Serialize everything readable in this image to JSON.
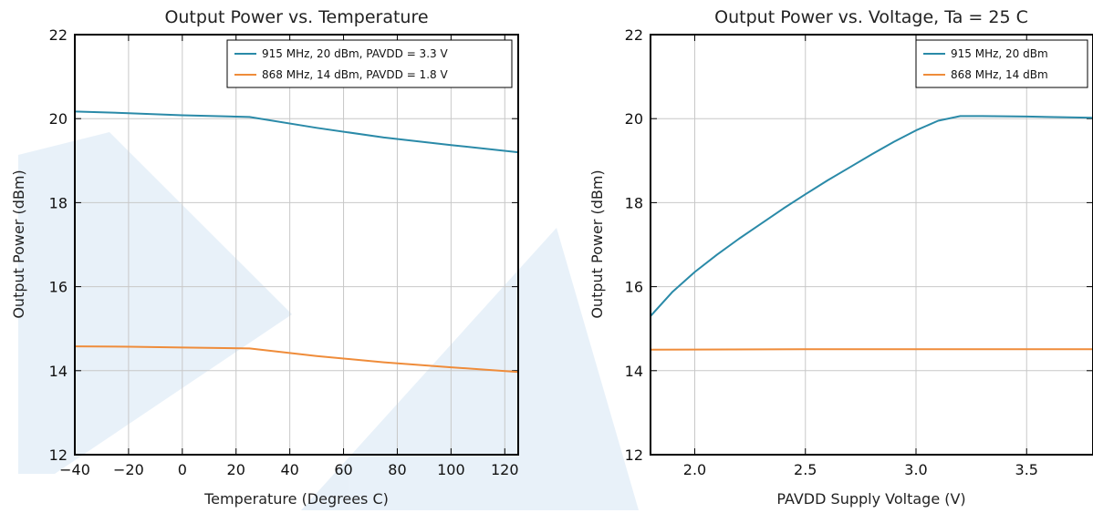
{
  "chart_data": [
    {
      "type": "line",
      "title": "Output Power vs. Temperature",
      "xlabel": "Temperature (Degrees C)",
      "ylabel": "Output Power (dBm)",
      "xlim": [
        -40,
        125
      ],
      "ylim": [
        12,
        22
      ],
      "xticks": [
        -40,
        -20,
        0,
        20,
        40,
        60,
        80,
        100,
        120
      ],
      "yticks": [
        12,
        14,
        16,
        18,
        20,
        22
      ],
      "grid": true,
      "legend": "top-right",
      "series": [
        {
          "name": "915 MHz, 20 dBm, PAVDD = 3.3 V",
          "color": "#2a8aa8",
          "x": [
            -40,
            -20,
            0,
            25,
            50,
            75,
            100,
            125
          ],
          "y": [
            20.17,
            20.13,
            20.08,
            20.04,
            19.78,
            19.55,
            19.37,
            19.2
          ]
        },
        {
          "name": "868 MHz, 14 dBm, PAVDD = 1.8 V",
          "color": "#ef8c3a",
          "x": [
            -40,
            -20,
            0,
            25,
            50,
            75,
            100,
            125
          ],
          "y": [
            14.58,
            14.57,
            14.55,
            14.53,
            14.35,
            14.2,
            14.08,
            13.97
          ]
        }
      ]
    },
    {
      "type": "line",
      "title": "Output Power vs. Voltage, Ta = 25 C",
      "xlabel": "PAVDD Supply Voltage (V)",
      "ylabel": "Output Power (dBm)",
      "xlim": [
        1.8,
        3.8
      ],
      "ylim": [
        12,
        22
      ],
      "xticks": [
        2.0,
        2.5,
        3.0,
        3.5
      ],
      "yticks": [
        12,
        14,
        16,
        18,
        20,
        22
      ],
      "grid": true,
      "legend": "top-right",
      "series": [
        {
          "name": "915 MHz, 20 dBm",
          "color": "#2a8aa8",
          "x": [
            1.8,
            1.9,
            2.0,
            2.1,
            2.2,
            2.3,
            2.4,
            2.5,
            2.6,
            2.7,
            2.8,
            2.9,
            3.0,
            3.1,
            3.2,
            3.3,
            3.5,
            3.8
          ],
          "y": [
            15.3,
            15.88,
            16.35,
            16.76,
            17.14,
            17.5,
            17.86,
            18.2,
            18.53,
            18.84,
            19.15,
            19.45,
            19.72,
            19.95,
            20.06,
            20.06,
            20.05,
            20.02
          ]
        },
        {
          "name": "868 MHz, 14 dBm",
          "color": "#ef8c3a",
          "x": [
            1.8,
            2.5,
            3.0,
            3.5,
            3.8
          ],
          "y": [
            14.5,
            14.51,
            14.51,
            14.51,
            14.51
          ]
        }
      ]
    }
  ]
}
